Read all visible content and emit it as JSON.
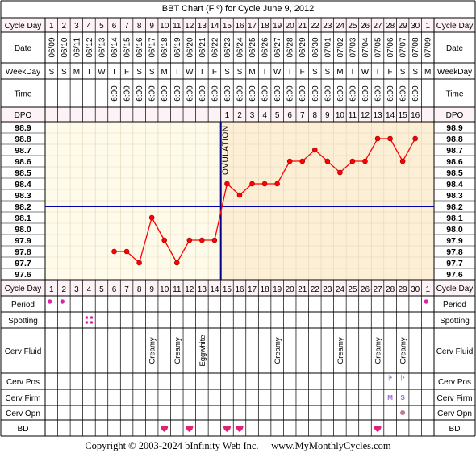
{
  "chart_data": {
    "type": "line",
    "title": "BBT Chart (F º) for Cycle June 9, 2012",
    "row_labels": {
      "cycle_day": "Cycle Day",
      "date": "Date",
      "weekday": "WeekDay",
      "time": "Time",
      "dpo": "DPO",
      "period": "Period",
      "spotting": "Spotting",
      "cerv_fluid": "Cerv Fluid",
      "cerv_pos": "Cerv Pos",
      "cerv_firm": "Cerv Firm",
      "cerv_opn": "Cerv Opn",
      "bd": "BD"
    },
    "cycle_days": [
      "1",
      "2",
      "3",
      "4",
      "5",
      "6",
      "7",
      "8",
      "9",
      "10",
      "11",
      "12",
      "13",
      "14",
      "15",
      "16",
      "17",
      "18",
      "19",
      "20",
      "21",
      "22",
      "23",
      "24",
      "25",
      "26",
      "27",
      "28",
      "29",
      "30",
      "1"
    ],
    "dates": [
      "06/09",
      "06/10",
      "06/11",
      "06/12",
      "06/13",
      "06/14",
      "06/15",
      "06/16",
      "06/17",
      "06/18",
      "06/19",
      "06/20",
      "06/21",
      "06/22",
      "06/23",
      "06/24",
      "06/25",
      "06/26",
      "06/27",
      "06/28",
      "06/29",
      "06/30",
      "07/01",
      "07/02",
      "07/03",
      "07/04",
      "07/05",
      "07/06",
      "07/07",
      "07/08",
      "07/09"
    ],
    "weekdays": [
      "S",
      "S",
      "M",
      "T",
      "W",
      "T",
      "F",
      "S",
      "S",
      "M",
      "T",
      "W",
      "T",
      "F",
      "S",
      "S",
      "M",
      "T",
      "W",
      "T",
      "F",
      "S",
      "S",
      "M",
      "T",
      "W",
      "T",
      "F",
      "S",
      "S",
      "M"
    ],
    "times": [
      "",
      "",
      "",
      "",
      "",
      "6:00",
      "6:00",
      "6:00",
      "6:00",
      "6:00",
      "6:00",
      "6:00",
      "6:00",
      "6:00",
      "6:00",
      "6:00",
      "6:00",
      "6:00",
      "6:00",
      "6:00",
      "6:00",
      "6:00",
      "6:00",
      "6:00",
      "6:00",
      "6:00",
      "6:00",
      "6:00",
      "6:00",
      "6:00",
      ""
    ],
    "dpo": [
      "",
      "",
      "",
      "",
      "",
      "",
      "",
      "",
      "",
      "",
      "",
      "",
      "",
      "",
      "1",
      "2",
      "3",
      "4",
      "5",
      "6",
      "7",
      "8",
      "9",
      "10",
      "11",
      "12",
      "13",
      "14",
      "15",
      "16",
      ""
    ],
    "temp_labels": [
      "98.9",
      "98.8",
      "98.7",
      "98.6",
      "98.5",
      "98.4",
      "98.3",
      "98.2",
      "98.1",
      "98.0",
      "97.9",
      "97.8",
      "97.7",
      "97.6"
    ],
    "ylim": [
      97.6,
      98.9
    ],
    "temperatures": [
      null,
      null,
      null,
      null,
      null,
      97.8,
      97.8,
      97.7,
      98.1,
      97.9,
      97.7,
      97.9,
      97.9,
      97.9,
      98.4,
      98.3,
      98.4,
      98.4,
      98.4,
      98.6,
      98.6,
      98.7,
      98.6,
      98.5,
      98.6,
      98.6,
      98.8,
      98.8,
      98.6,
      98.8,
      null
    ],
    "coverline": 98.2,
    "ovulation_day": 14,
    "ovulation_label": "OVULATION",
    "period": [
      1,
      1,
      0,
      0,
      0,
      0,
      0,
      0,
      0,
      0,
      0,
      0,
      0,
      0,
      0,
      0,
      0,
      0,
      0,
      0,
      0,
      0,
      0,
      0,
      0,
      0,
      0,
      0,
      0,
      0,
      1
    ],
    "spotting": [
      0,
      0,
      0,
      1,
      0,
      0,
      0,
      0,
      0,
      0,
      0,
      0,
      0,
      0,
      0,
      0,
      0,
      0,
      0,
      0,
      0,
      0,
      0,
      0,
      0,
      0,
      0,
      0,
      0,
      0,
      0
    ],
    "cerv_fluid": [
      "",
      "",
      "",
      "",
      "",
      "",
      "",
      "",
      "Creamy",
      "",
      "Creamy",
      "",
      "Eggwhite",
      "",
      "",
      "",
      "",
      "",
      "Creamy",
      "",
      "",
      "",
      "",
      "Creamy",
      "",
      "",
      "Creamy",
      "",
      "Creamy",
      "",
      ""
    ],
    "cerv_pos": [
      "",
      "",
      "",
      "",
      "",
      "",
      "",
      "",
      "",
      "",
      "",
      "",
      "",
      "",
      "",
      "",
      "",
      "",
      "",
      "",
      "",
      "",
      "",
      "",
      "",
      "",
      "",
      "|•",
      "|•",
      "",
      ""
    ],
    "cerv_firm": [
      "",
      "",
      "",
      "",
      "",
      "",
      "",
      "",
      "",
      "",
      "",
      "",
      "",
      "",
      "",
      "",
      "",
      "",
      "",
      "",
      "",
      "",
      "",
      "",
      "",
      "",
      "",
      "M",
      "S",
      "",
      ""
    ],
    "cerv_opn": [
      0,
      0,
      0,
      0,
      0,
      0,
      0,
      0,
      0,
      0,
      0,
      0,
      0,
      0,
      0,
      0,
      0,
      0,
      0,
      0,
      0,
      0,
      0,
      0,
      0,
      0,
      0,
      0,
      1,
      0,
      0
    ],
    "bd": [
      0,
      0,
      0,
      0,
      0,
      0,
      0,
      0,
      0,
      1,
      0,
      1,
      0,
      0,
      1,
      1,
      0,
      0,
      0,
      0,
      0,
      0,
      0,
      0,
      0,
      0,
      1,
      0,
      0,
      0,
      0
    ],
    "colors": {
      "line": "#ff0000",
      "point_fill": "#ff0000",
      "point_stroke": "#990000",
      "coverline": "#0000aa",
      "ovulation": "#000088",
      "pre_bg": "#fffbea",
      "post_bg": "#fcefd6",
      "grid": "#e2d6b8",
      "header_bg": "#fdf3f7",
      "period": "#dd22aa",
      "heart": "#dd2277",
      "firm_text": "#9966cc"
    }
  },
  "footer": "Copyright © 2003-2024 bInfinity Web Inc.     www.MyMonthlyCycles.com"
}
